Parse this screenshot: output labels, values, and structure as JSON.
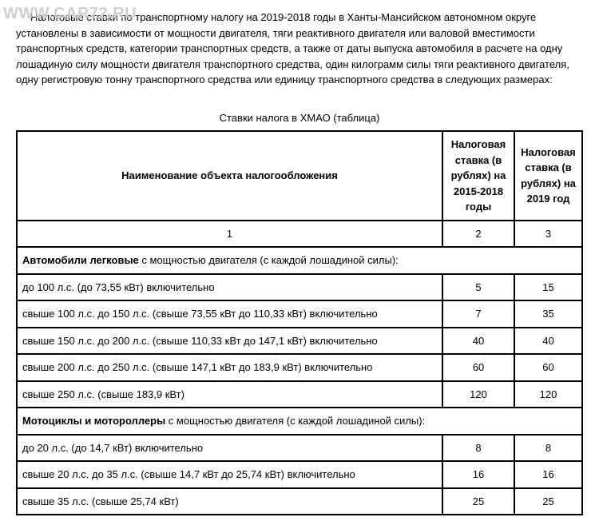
{
  "watermark": "WWW.CAR72.RU",
  "intro": "Налоговые ставки по транспортному налогу на 2019-2018 годы в Ханты-Мансийском автономном округе установлены в зависимости от мощности двигателя, тяги реактивного двигателя или валовой вместимости транспортных средств, категории транспортных средств, а также от даты выпуска автомобиля в расчете на одну лошадиную силу мощности двигателя транспортного средства, один килограмм силы тяги реактивного двигателя, одну регистровую тонну транспортного средства или единицу транспортного средства в следующих размерах:",
  "caption": "Ставки налога в ХМАО (таблица)",
  "headers": {
    "h1": "Наименование объекта налогообложения",
    "h2": "Налоговая ставка (в рублях) на 2015-2018 годы",
    "h3": "Налоговая ставка (в рублях) на 2019 год"
  },
  "idx": {
    "c1": "1",
    "c2": "2",
    "c3": "3"
  },
  "cat1": {
    "bold": "Автомобили легковые",
    "rest": " с мощностью двигателя (с каждой лошадиной силы):"
  },
  "r1": {
    "name": "до 100 л.с. (до 73,55 кВт) включительно",
    "a": "5",
    "b": "15"
  },
  "r2": {
    "name": "свыше 100 л.с. до 150 л.с. (свыше 73,55 кВт до 110,33 кВт) включительно",
    "a": "7",
    "b": "35"
  },
  "r3": {
    "name": "свыше 150 л.с. до 200 л.с. (свыше 110,33 кВт до 147,1 кВт) включительно",
    "a": "40",
    "b": "40"
  },
  "r4": {
    "name": "свыше 200 л.с. до 250 л.с. (свыше 147,1 кВт до 183,9 кВт) включительно",
    "a": "60",
    "b": "60"
  },
  "r5": {
    "name": "свыше 250 л.с. (свыше 183,9 кВт)",
    "a": "120",
    "b": "120"
  },
  "cat2": {
    "bold": "Мотоциклы и мотороллеры",
    "rest": " с мощностью двигателя (с каждой лошадиной силы):"
  },
  "r6": {
    "name": "до 20 л.с. (до 14,7 кВт) включительно",
    "a": "8",
    "b": "8"
  },
  "r7": {
    "name": "свыше 20 л.с. до 35 л.с. (свыше 14,7 кВт до 25,74 кВт) включительно",
    "a": "16",
    "b": "16"
  },
  "r8": {
    "name": "свыше 35 л.с. (свыше 25,74 кВт)",
    "a": "25",
    "b": "25"
  }
}
